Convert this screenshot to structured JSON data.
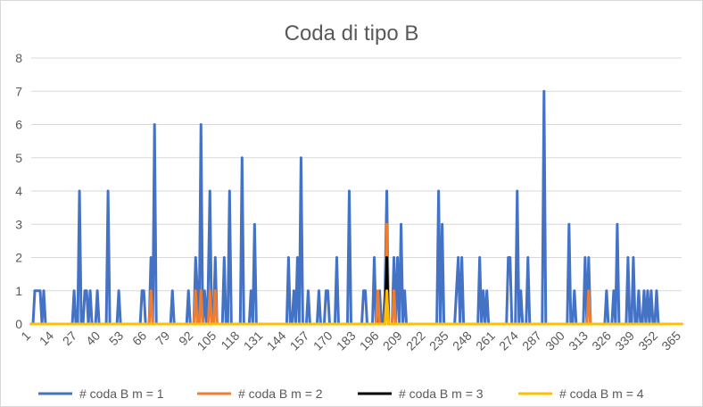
{
  "chart_data": {
    "type": "line",
    "title": "Coda di tipo B",
    "xlabel": "",
    "ylabel": "",
    "x_range": [
      1,
      365
    ],
    "ylim": [
      0,
      8
    ],
    "y_ticks": [
      0,
      1,
      2,
      3,
      4,
      5,
      6,
      7,
      8
    ],
    "x_ticks": [
      1,
      14,
      27,
      40,
      53,
      66,
      79,
      92,
      105,
      118,
      131,
      144,
      157,
      170,
      183,
      196,
      209,
      222,
      235,
      248,
      261,
      274,
      287,
      300,
      313,
      326,
      339,
      352,
      365
    ],
    "grid": "horizontal",
    "legend_position": "bottom",
    "series": [
      {
        "name": "# coda B m = 1",
        "color": "#4472C4",
        "nonzero": [
          [
            3,
            1
          ],
          [
            4,
            1
          ],
          [
            5,
            1
          ],
          [
            6,
            1
          ],
          [
            8,
            1
          ],
          [
            25,
            1
          ],
          [
            28,
            4
          ],
          [
            31,
            1
          ],
          [
            32,
            1
          ],
          [
            34,
            1
          ],
          [
            38,
            1
          ],
          [
            44,
            4
          ],
          [
            50,
            1
          ],
          [
            63,
            1
          ],
          [
            64,
            1
          ],
          [
            68,
            2
          ],
          [
            70,
            6
          ],
          [
            80,
            1
          ],
          [
            89,
            1
          ],
          [
            93,
            2
          ],
          [
            94,
            1
          ],
          [
            96,
            6
          ],
          [
            98,
            1
          ],
          [
            100,
            1
          ],
          [
            101,
            4
          ],
          [
            104,
            2
          ],
          [
            109,
            2
          ],
          [
            112,
            4
          ],
          [
            119,
            5
          ],
          [
            124,
            1
          ],
          [
            126,
            3
          ],
          [
            145,
            2
          ],
          [
            148,
            1
          ],
          [
            150,
            2
          ],
          [
            152,
            5
          ],
          [
            156,
            1
          ],
          [
            162,
            1
          ],
          [
            166,
            1
          ],
          [
            167,
            1
          ],
          [
            172,
            2
          ],
          [
            179,
            4
          ],
          [
            187,
            1
          ],
          [
            188,
            1
          ],
          [
            193,
            2
          ],
          [
            196,
            1
          ],
          [
            199,
            1
          ],
          [
            200,
            4
          ],
          [
            204,
            2
          ],
          [
            206,
            2
          ],
          [
            208,
            3
          ],
          [
            210,
            1
          ],
          [
            229,
            4
          ],
          [
            231,
            3
          ],
          [
            239,
            1
          ],
          [
            240,
            2
          ],
          [
            242,
            2
          ],
          [
            252,
            2
          ],
          [
            254,
            1
          ],
          [
            256,
            1
          ],
          [
            268,
            2
          ],
          [
            269,
            2
          ],
          [
            273,
            4
          ],
          [
            275,
            1
          ],
          [
            279,
            2
          ],
          [
            288,
            7
          ],
          [
            302,
            3
          ],
          [
            305,
            1
          ],
          [
            311,
            2
          ],
          [
            313,
            2
          ],
          [
            323,
            1
          ],
          [
            327,
            1
          ],
          [
            329,
            3
          ],
          [
            335,
            2
          ],
          [
            338,
            2
          ],
          [
            341,
            1
          ],
          [
            344,
            1
          ],
          [
            346,
            1
          ],
          [
            348,
            1
          ],
          [
            351,
            1
          ]
        ]
      },
      {
        "name": "# coda B m = 2",
        "color": "#ED7D31",
        "nonzero": [
          [
            68,
            1
          ],
          [
            93,
            1
          ],
          [
            96,
            1
          ],
          [
            101,
            1
          ],
          [
            104,
            1
          ],
          [
            195,
            1
          ],
          [
            200,
            3
          ],
          [
            204,
            1
          ],
          [
            313,
            1
          ]
        ]
      },
      {
        "name": "# coda B m = 3",
        "color": "#000000",
        "nonzero": [
          [
            200,
            2
          ]
        ]
      },
      {
        "name": "# coda B m = 4",
        "color": "#FFC000",
        "nonzero": [
          [
            200,
            1
          ]
        ]
      }
    ]
  }
}
